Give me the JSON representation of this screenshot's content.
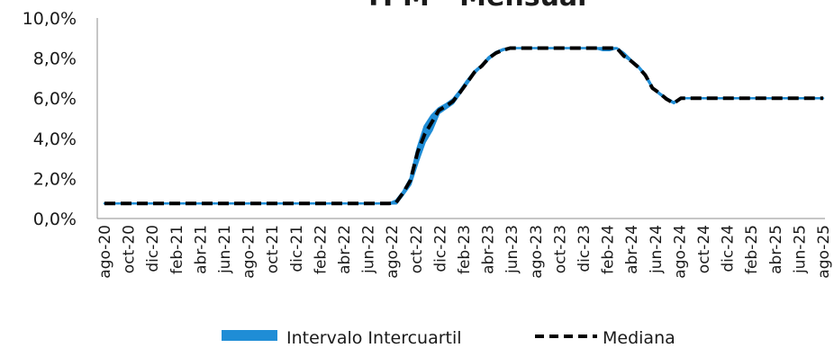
{
  "chart_data": {
    "type": "area",
    "title": "TPM - Mensual",
    "xlabel": "",
    "ylabel": "",
    "ylim": [
      0,
      10
    ],
    "y_ticks": [
      "0,0%",
      "2,0%",
      "4,0%",
      "6,0%",
      "8,0%",
      "10,0%"
    ],
    "x_tick_labels": [
      "ago-20",
      "oct-20",
      "dic-20",
      "feb-21",
      "abr-21",
      "jun-21",
      "ago-21",
      "oct-21",
      "dic-21",
      "feb-22",
      "abr-22",
      "jun-22",
      "ago-22",
      "oct-22",
      "dic-22",
      "feb-23",
      "abr-23",
      "jun-23",
      "ago-23",
      "oct-23",
      "dic-23",
      "feb-24",
      "abr-24",
      "jun-24",
      "ago-24",
      "oct-24",
      "dic-24",
      "feb-25",
      "abr-25",
      "jun-25",
      "ago-25"
    ],
    "grid": false,
    "legend_position": "bottom",
    "series": [
      {
        "name": "Intervalo Intercuartil",
        "kind": "band",
        "color": "#1f8dd6",
        "lower": [
          0.75,
          0.75,
          0.75,
          0.75,
          0.75,
          0.75,
          0.75,
          0.75,
          0.75,
          0.75,
          0.75,
          0.75,
          0.75,
          0.75,
          0.75,
          0.75,
          0.75,
          0.75,
          0.75,
          0.75,
          0.75,
          0.75,
          0.75,
          0.75,
          0.75,
          0.75,
          0.75,
          0.75,
          0.75,
          0.75,
          0.75,
          0.75,
          0.75,
          0.75,
          0.75,
          0.75,
          0.75,
          0.75,
          0.75,
          0.75,
          0.75,
          0.75,
          1.2,
          1.7,
          2.8,
          3.8,
          4.4,
          5.25,
          5.5,
          5.75,
          6.25,
          6.75,
          7.25,
          7.6,
          7.95,
          8.25,
          8.4,
          8.5,
          8.5,
          8.5,
          8.5,
          8.5,
          8.5,
          8.5,
          8.5,
          8.5,
          8.5,
          8.5,
          8.5,
          8.5,
          8.4,
          8.4,
          8.5,
          8.1,
          7.85,
          7.55,
          7.1,
          6.5,
          6.2,
          5.95,
          5.75,
          6.0,
          6.0,
          6.0,
          6.0,
          6.0,
          6.0,
          6.0,
          6.0,
          6.0,
          6.0,
          6.0,
          6.0,
          6.0,
          6.0,
          6.0,
          6.0,
          6.0,
          6.0,
          6.0,
          6.0,
          6.0
        ],
        "upper": [
          0.75,
          0.75,
          0.75,
          0.75,
          0.75,
          0.75,
          0.75,
          0.75,
          0.75,
          0.75,
          0.75,
          0.75,
          0.75,
          0.75,
          0.75,
          0.75,
          0.75,
          0.75,
          0.75,
          0.75,
          0.75,
          0.75,
          0.75,
          0.75,
          0.75,
          0.75,
          0.75,
          0.75,
          0.75,
          0.75,
          0.75,
          0.75,
          0.75,
          0.75,
          0.75,
          0.75,
          0.75,
          0.75,
          0.75,
          0.75,
          0.75,
          0.9,
          1.35,
          2.0,
          3.5,
          4.6,
          5.15,
          5.5,
          5.7,
          5.95,
          6.4,
          6.9,
          7.35,
          7.65,
          8.05,
          8.3,
          8.45,
          8.5,
          8.5,
          8.5,
          8.5,
          8.5,
          8.5,
          8.5,
          8.5,
          8.5,
          8.5,
          8.5,
          8.5,
          8.5,
          8.5,
          8.5,
          8.5,
          8.25,
          7.9,
          7.6,
          7.2,
          6.55,
          6.25,
          6.0,
          5.8,
          6.0,
          6.0,
          6.0,
          6.0,
          6.0,
          6.0,
          6.0,
          6.0,
          6.0,
          6.0,
          6.0,
          6.0,
          6.0,
          6.0,
          6.0,
          6.0,
          6.0,
          6.0,
          6.0,
          6.0,
          6.0
        ]
      },
      {
        "name": "Mediana",
        "kind": "line",
        "color": "#000000",
        "dash": true,
        "values": [
          0.75,
          0.75,
          0.75,
          0.75,
          0.75,
          0.75,
          0.75,
          0.75,
          0.75,
          0.75,
          0.75,
          0.75,
          0.75,
          0.75,
          0.75,
          0.75,
          0.75,
          0.75,
          0.75,
          0.75,
          0.75,
          0.75,
          0.75,
          0.75,
          0.75,
          0.75,
          0.75,
          0.75,
          0.75,
          0.75,
          0.75,
          0.75,
          0.75,
          0.75,
          0.75,
          0.75,
          0.75,
          0.75,
          0.75,
          0.75,
          0.75,
          0.8,
          1.3,
          1.9,
          3.3,
          4.2,
          4.8,
          5.4,
          5.6,
          5.85,
          6.3,
          6.8,
          7.3,
          7.6,
          8.0,
          8.25,
          8.4,
          8.5,
          8.5,
          8.5,
          8.5,
          8.5,
          8.5,
          8.5,
          8.5,
          8.5,
          8.5,
          8.5,
          8.5,
          8.5,
          8.5,
          8.5,
          8.5,
          8.1,
          7.85,
          7.55,
          7.15,
          6.5,
          6.25,
          5.95,
          5.75,
          6.0,
          6.0,
          6.0,
          6.0,
          6.0,
          6.0,
          6.0,
          6.0,
          6.0,
          6.0,
          6.0,
          6.0,
          6.0,
          6.0,
          6.0,
          6.0,
          6.0,
          6.0,
          6.0,
          6.0,
          6.0
        ]
      }
    ]
  }
}
